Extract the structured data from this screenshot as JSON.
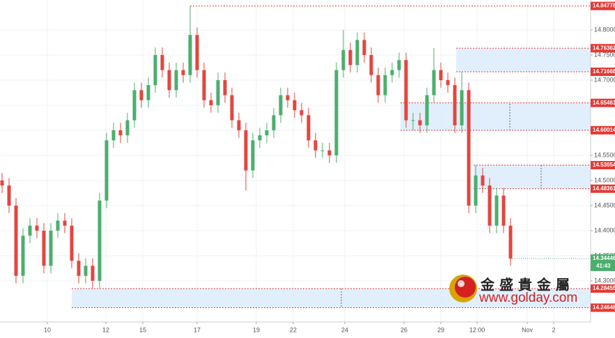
{
  "chart_data": {
    "type": "candlestick",
    "open": [
      14.5,
      14.49,
      14.45,
      14.31,
      14.39,
      14.41,
      14.4,
      14.33,
      14.4,
      14.42,
      14.41,
      14.34,
      14.31,
      14.33,
      14.3,
      14.46,
      14.58,
      14.6,
      14.59,
      14.62,
      14.68,
      14.66,
      14.69,
      14.75,
      14.72,
      14.68,
      14.72,
      14.71,
      14.79,
      14.72,
      14.66,
      14.65,
      14.7,
      14.67,
      14.62,
      14.6,
      14.52,
      14.58,
      14.59,
      14.6,
      14.63,
      14.67,
      14.66,
      14.64,
      14.63,
      14.58,
      14.56,
      14.56,
      14.55,
      14.72,
      14.76,
      14.73,
      14.78,
      14.75,
      14.71,
      14.67,
      14.71,
      14.72,
      14.74,
      14.62,
      14.62,
      14.61,
      14.67,
      14.72,
      14.7,
      14.69,
      14.61,
      14.68,
      14.45,
      14.51,
      14.49,
      14.41,
      14.47,
      14.41
    ],
    "high": [
      14.515,
      14.505,
      14.465,
      14.405,
      14.425,
      14.425,
      14.415,
      14.415,
      14.435,
      14.435,
      14.425,
      14.355,
      14.345,
      14.345,
      14.475,
      14.595,
      14.615,
      14.615,
      14.635,
      14.695,
      14.695,
      14.705,
      14.765,
      14.765,
      14.735,
      14.735,
      14.735,
      14.848,
      14.805,
      14.735,
      14.675,
      14.715,
      14.715,
      14.685,
      14.635,
      14.615,
      14.595,
      14.605,
      14.615,
      14.645,
      14.685,
      14.685,
      14.675,
      14.655,
      14.645,
      14.595,
      14.575,
      14.575,
      14.735,
      14.8,
      14.775,
      14.795,
      14.795,
      14.765,
      14.725,
      14.725,
      14.735,
      14.755,
      14.755,
      14.635,
      14.635,
      14.685,
      14.764,
      14.735,
      14.715,
      14.705,
      14.717,
      14.695,
      14.531,
      14.525,
      14.505,
      14.485,
      14.485,
      14.425
    ],
    "low": [
      14.475,
      14.435,
      14.295,
      14.295,
      14.375,
      14.385,
      14.315,
      14.315,
      14.385,
      14.395,
      14.325,
      14.295,
      14.295,
      14.285,
      14.285,
      14.445,
      14.565,
      14.575,
      14.575,
      14.605,
      14.645,
      14.645,
      14.675,
      14.705,
      14.665,
      14.665,
      14.695,
      14.695,
      14.705,
      14.645,
      14.635,
      14.635,
      14.655,
      14.605,
      14.585,
      14.48,
      14.505,
      14.565,
      14.575,
      14.585,
      14.615,
      14.645,
      14.625,
      14.615,
      14.565,
      14.545,
      14.545,
      14.535,
      14.535,
      14.705,
      14.715,
      14.715,
      14.735,
      14.695,
      14.655,
      14.655,
      14.695,
      14.705,
      14.605,
      14.6,
      14.595,
      14.595,
      14.655,
      14.685,
      14.675,
      14.595,
      14.595,
      14.435,
      14.435,
      14.475,
      14.395,
      14.395,
      14.395,
      14.33
    ],
    "close": [
      14.49,
      14.45,
      14.31,
      14.39,
      14.41,
      14.4,
      14.33,
      14.4,
      14.42,
      14.41,
      14.34,
      14.31,
      14.33,
      14.3,
      14.46,
      14.58,
      14.6,
      14.59,
      14.62,
      14.68,
      14.66,
      14.69,
      14.75,
      14.72,
      14.68,
      14.72,
      14.71,
      14.79,
      14.72,
      14.66,
      14.65,
      14.7,
      14.67,
      14.62,
      14.6,
      14.52,
      14.58,
      14.59,
      14.6,
      14.63,
      14.67,
      14.66,
      14.64,
      14.63,
      14.58,
      14.56,
      14.56,
      14.55,
      14.72,
      14.76,
      14.73,
      14.78,
      14.75,
      14.71,
      14.67,
      14.71,
      14.72,
      14.74,
      14.62,
      14.62,
      14.61,
      14.67,
      14.72,
      14.7,
      14.69,
      14.61,
      14.68,
      14.45,
      14.51,
      14.49,
      14.41,
      14.47,
      14.41,
      14.34446
    ],
    "up_color": "#4cae6e",
    "down_color": "#e2463f",
    "level_color": "#e53935",
    "zone_color": "#dcecfc",
    "xlim": [
      -0.3,
      84.5
    ],
    "xticks": [
      {
        "value": 6.5,
        "label": "10"
      },
      {
        "value": 14.9,
        "label": "12"
      },
      {
        "value": 20.2,
        "label": "15"
      },
      {
        "value": 28,
        "label": "17"
      },
      {
        "value": 36.5,
        "label": "19"
      },
      {
        "value": 41.8,
        "label": "22"
      },
      {
        "value": 49.2,
        "label": "24"
      },
      {
        "value": 57.7,
        "label": "26"
      },
      {
        "value": 63,
        "label": "29"
      },
      {
        "value": 68.2,
        "label": "12:00"
      },
      {
        "value": 75.4,
        "label": "Nov"
      },
      {
        "value": 79.2,
        "label": "2"
      }
    ],
    "ylim": [
      14.218,
      14.8597
    ],
    "yticks": [
      {
        "value": 14.3,
        "label": "14.30000"
      },
      {
        "value": 14.35,
        "label": "14.35000"
      },
      {
        "value": 14.4,
        "label": "14.40000"
      },
      {
        "value": 14.45,
        "label": "14.45000"
      },
      {
        "value": 14.5,
        "label": "14.50000"
      },
      {
        "value": 14.55,
        "label": "14.55000"
      },
      {
        "value": 14.6,
        "label": "14.60000"
      },
      {
        "value": 14.65,
        "label": "14.65000"
      },
      {
        "value": 14.7,
        "label": "14.70000"
      },
      {
        "value": 14.75,
        "label": "14.75000"
      },
      {
        "value": 14.8,
        "label": "14.80000"
      }
    ],
    "grid": true,
    "levels": [
      {
        "value": 14.84778,
        "start": 27
      }
    ],
    "zones": [
      {
        "top": 14.76362,
        "bottom": 14.71668,
        "start": 65.2
      },
      {
        "top": 14.65461,
        "bottom": 14.60014,
        "start": 57.2
      },
      {
        "top": 14.53054,
        "bottom": 14.48361,
        "start": 67.7
      },
      {
        "top": 14.28455,
        "bottom": 14.24648,
        "start": 10
      }
    ],
    "last_price": 14.34446,
    "last_price_color": "#4cae6e",
    "countdown": "41:43"
  },
  "watermark": {
    "brand": "金 盛 貴 金 屬",
    "url": "www.golday.com"
  }
}
